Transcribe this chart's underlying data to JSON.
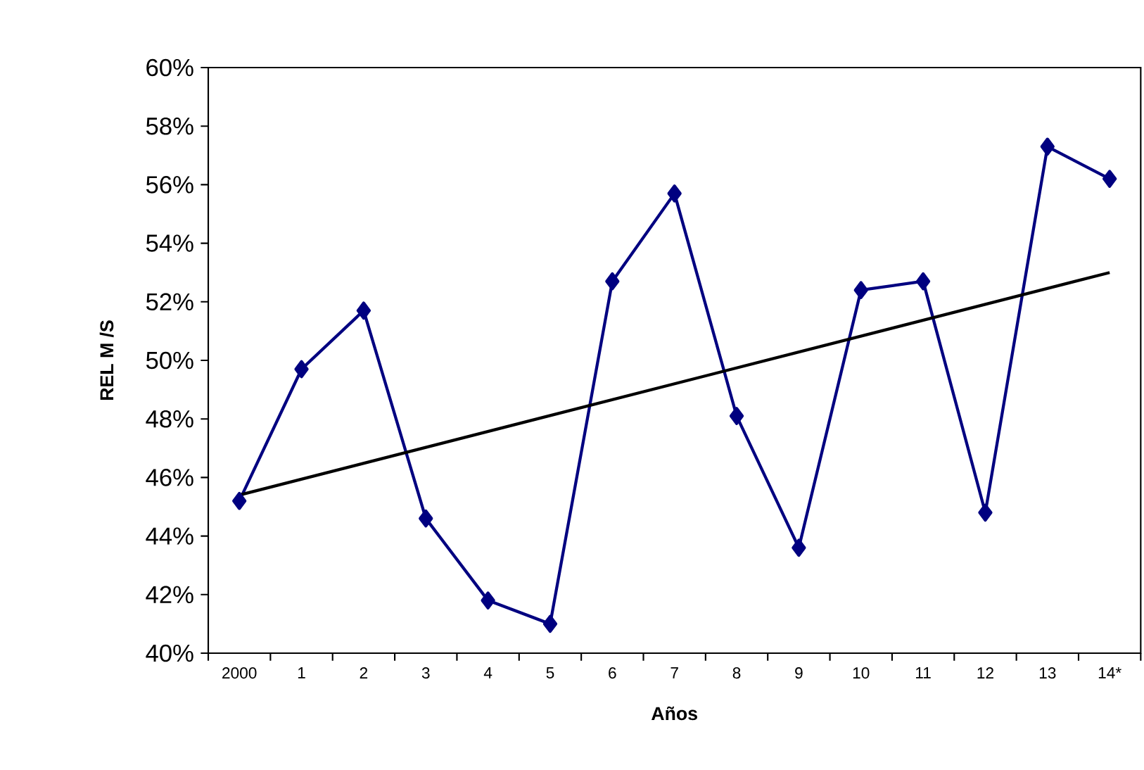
{
  "chart_data": {
    "type": "line",
    "xlabel": "Años",
    "ylabel": "REL M /S",
    "categories": [
      "2000",
      "1",
      "2",
      "3",
      "4",
      "5",
      "6",
      "7",
      "8",
      "9",
      "10",
      "11",
      "12",
      "13",
      "14*"
    ],
    "series": [
      {
        "color": "#000080",
        "marker": "diamond",
        "values": [
          45.2,
          49.7,
          51.7,
          44.6,
          41.8,
          41.0,
          52.7,
          55.7,
          48.1,
          43.6,
          52.4,
          52.7,
          44.8,
          57.3,
          56.2
        ]
      },
      {
        "type": "line",
        "color": "#000000",
        "marker": "none",
        "values": [
          45.4,
          null,
          null,
          null,
          null,
          null,
          null,
          null,
          null,
          null,
          null,
          null,
          null,
          null,
          53.0
        ]
      }
    ],
    "ylim": [
      40,
      60
    ],
    "yticks": [
      {
        "value": 40,
        "label": "40%"
      },
      {
        "value": 42,
        "label": "42%"
      },
      {
        "value": 44,
        "label": "44%"
      },
      {
        "value": 46,
        "label": "46%"
      },
      {
        "value": 48,
        "label": "48%"
      },
      {
        "value": 50,
        "label": "50%"
      },
      {
        "value": 52,
        "label": "52%"
      },
      {
        "value": 54,
        "label": "54%"
      },
      {
        "value": 56,
        "label": "56%"
      },
      {
        "value": 58,
        "label": "58%"
      },
      {
        "value": 60,
        "label": "60%"
      }
    ],
    "grid": false
  }
}
